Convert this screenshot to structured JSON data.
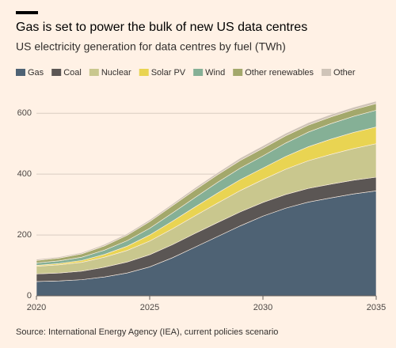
{
  "chart_data": {
    "type": "stacked-area",
    "title": "Gas is set to power the bulk of new US data centres",
    "subtitle": "US electricity generation for data centres by fuel (TWh)",
    "source": "Source: International Energy Agency (IEA), current policies scenario",
    "x": [
      2020,
      2021,
      2022,
      2023,
      2024,
      2025,
      2026,
      2027,
      2028,
      2029,
      2030,
      2031,
      2032,
      2033,
      2034,
      2035
    ],
    "xlim": [
      2020,
      2035
    ],
    "xticks": [
      2020,
      2025,
      2030,
      2035
    ],
    "ylim": [
      0,
      650
    ],
    "yticks": [
      0,
      200,
      400,
      600
    ],
    "grid": true,
    "series": [
      {
        "name": "Gas",
        "color": "#4e6274",
        "values": [
          47,
          49,
          53,
          62,
          75,
          95,
          125,
          160,
          195,
          230,
          262,
          288,
          308,
          322,
          335,
          345
        ]
      },
      {
        "name": "Coal",
        "color": "#5b5654",
        "values": [
          25,
          26,
          28,
          32,
          36,
          40,
          43,
          45,
          46,
          46,
          45,
          45,
          45,
          45,
          45,
          45
        ]
      },
      {
        "name": "Nuclear",
        "color": "#c9c78e",
        "values": [
          25,
          27,
          29,
          33,
          38,
          45,
          52,
          58,
          64,
          70,
          75,
          83,
          91,
          98,
          104,
          110
        ]
      },
      {
        "name": "Solar PV",
        "color": "#e9d452",
        "values": [
          3,
          4,
          6,
          9,
          14,
          20,
          25,
          29,
          33,
          36,
          38,
          42,
          46,
          50,
          53,
          55
        ]
      },
      {
        "name": "Wind",
        "color": "#85b096",
        "values": [
          8,
          9,
          11,
          14,
          18,
          22,
          27,
          31,
          35,
          38,
          40,
          44,
          48,
          51,
          53,
          55
        ]
      },
      {
        "name": "Other renewables",
        "color": "#a3a86b",
        "values": [
          8,
          9,
          11,
          14,
          18,
          22,
          24,
          25,
          25,
          25,
          25,
          24,
          23,
          22,
          22,
          22
        ]
      },
      {
        "name": "Other",
        "color": "#cfc4b8",
        "values": [
          4,
          4,
          4,
          5,
          5,
          6,
          6,
          7,
          7,
          8,
          8,
          8,
          8,
          8,
          8,
          8
        ]
      }
    ]
  }
}
